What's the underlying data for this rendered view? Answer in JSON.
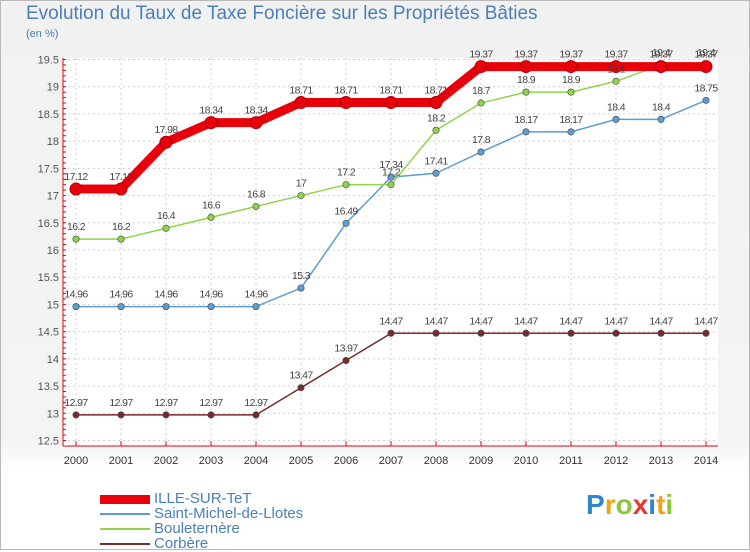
{
  "chart_data": {
    "type": "line",
    "title": "Evolution du Taux de Taxe Foncière sur les Propriétés Bâties",
    "ylabel": "(en %)",
    "xlabel": "",
    "x": [
      2000,
      2001,
      2002,
      2003,
      2004,
      2005,
      2006,
      2007,
      2008,
      2009,
      2010,
      2011,
      2012,
      2013,
      2014
    ],
    "ylim": [
      12.5,
      19.5
    ],
    "yticks": [
      12.5,
      13,
      13.5,
      14,
      14.5,
      15,
      15.5,
      16,
      16.5,
      17,
      17.5,
      18,
      18.5,
      19,
      19.5
    ],
    "grid": true,
    "series": [
      {
        "name": "ILLE-SUR-TeT",
        "color": "#e8000b",
        "width": 9,
        "labels": [
          "17.12",
          "17.12",
          "17.98",
          "18.34",
          "18.34",
          "18.71",
          "18.71",
          "18.71",
          "18.71",
          "19.37",
          "19.37",
          "19.37",
          "19.37",
          "19.37",
          "19.37"
        ],
        "values": [
          17.12,
          17.12,
          17.98,
          18.34,
          18.34,
          18.71,
          18.71,
          18.71,
          18.71,
          19.37,
          19.37,
          19.37,
          19.37,
          19.37,
          19.37
        ]
      },
      {
        "name": "Saint-Michel-de-Llotes",
        "color": "#5d9dd1",
        "width": 1.5,
        "labels": [
          "14.96",
          "14.96",
          "14.96",
          "14.96",
          "14.96",
          "15.3",
          "16.49",
          "17.34",
          "17.41",
          "17.8",
          "18.17",
          "18.17",
          "18.4",
          "18.4",
          "18.75"
        ],
        "values": [
          14.96,
          14.96,
          14.96,
          14.96,
          14.96,
          15.3,
          16.49,
          17.34,
          17.41,
          17.8,
          18.17,
          18.17,
          18.4,
          18.4,
          18.75
        ]
      },
      {
        "name": "Bouleternère",
        "color": "#8fd44a",
        "width": 1.5,
        "labels": [
          "16.2",
          "16.2",
          "16.4",
          "16.6",
          "16.8",
          "17",
          "17.2",
          "17.2",
          "18.2",
          "18.7",
          "18.9",
          "18.9",
          "19.1",
          "19.4",
          "19.4"
        ],
        "values": [
          16.2,
          16.2,
          16.4,
          16.6,
          16.8,
          17,
          17.2,
          17.2,
          18.2,
          18.7,
          18.9,
          18.9,
          19.1,
          19.4,
          19.4
        ]
      },
      {
        "name": "Corbère",
        "color": "#7a2a2a",
        "width": 1.5,
        "labels": [
          "12.97",
          "12.97",
          "12.97",
          "12.97",
          "12.97",
          "13.47",
          "13.97",
          "14.47",
          "14.47",
          "14.47",
          "14.47",
          "14.47",
          "14.47",
          "14.47",
          "14.47"
        ],
        "values": [
          12.97,
          12.97,
          12.97,
          12.97,
          12.97,
          13.47,
          13.97,
          14.47,
          14.47,
          14.47,
          14.47,
          14.47,
          14.47,
          14.47,
          14.47
        ]
      }
    ],
    "legend_position": "bottom-left"
  },
  "brand": {
    "letters": [
      "P",
      "r",
      "o",
      "x",
      "i",
      "t",
      "i"
    ],
    "colors": [
      "#2f86c9",
      "#f2a21a",
      "#8cc63f",
      "#e33b2e",
      "#2f86c9",
      "#f2a21a",
      "#8cc63f"
    ]
  }
}
